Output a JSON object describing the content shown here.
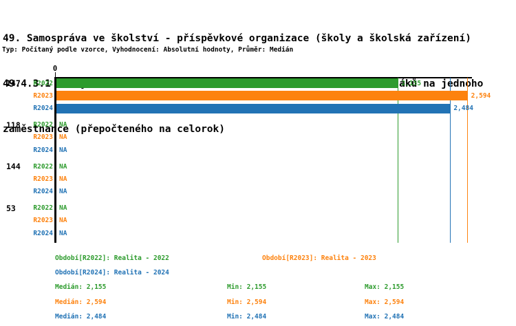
{
  "title": {
    "line1": "49. Samospráva ve školství - příspěvkové organizace (školy a školská zařízení)",
    "line2": "49.4.3.1 Školy zřízené dle § 16 odst. 9 školského zákona - Počet žáků na jednoho",
    "line3": "zaměstnance (přepočteného na celorok)",
    "subtitle": "Typ: Počítaný podle vzorce, Vyhodnocení: Absolutní hodnoty, Průměr: Medián"
  },
  "colors": {
    "series": {
      "R2022": "#2d9b2d",
      "R2023": "#fd820e",
      "R2024": "#2273b5"
    },
    "axis": "#000000",
    "text": "#000000"
  },
  "chart_data": {
    "type": "bar",
    "orientation": "horizontal",
    "x_tick_label": "0",
    "xlim": [
      0,
      2.62
    ],
    "decimal_separator": ",",
    "categories": [
      "147",
      "118",
      "144",
      "53"
    ],
    "series": [
      "R2022",
      "R2023",
      "R2024"
    ],
    "groups": [
      {
        "category": "147",
        "bars": [
          {
            "series": "R2022",
            "value": 2.155,
            "label": "2,155"
          },
          {
            "series": "R2023",
            "value": 2.594,
            "label": "2,594"
          },
          {
            "series": "R2024",
            "value": 2.484,
            "label": "2,484"
          }
        ]
      },
      {
        "category": "118",
        "bars": [
          {
            "series": "R2022",
            "value": null,
            "label": "NA"
          },
          {
            "series": "R2023",
            "value": null,
            "label": "NA"
          },
          {
            "series": "R2024",
            "value": null,
            "label": "NA"
          }
        ]
      },
      {
        "category": "144",
        "bars": [
          {
            "series": "R2022",
            "value": null,
            "label": "NA"
          },
          {
            "series": "R2023",
            "value": null,
            "label": "NA"
          },
          {
            "series": "R2024",
            "value": null,
            "label": "NA"
          }
        ]
      },
      {
        "category": "53",
        "bars": [
          {
            "series": "R2022",
            "value": null,
            "label": "NA"
          },
          {
            "series": "R2023",
            "value": null,
            "label": "NA"
          },
          {
            "series": "R2024",
            "value": null,
            "label": "NA"
          }
        ]
      }
    ],
    "reference_lines": [
      {
        "series": "R2022",
        "value": 2.155
      },
      {
        "series": "R2023",
        "value": 2.594
      },
      {
        "series": "R2024",
        "value": 2.484
      }
    ]
  },
  "legend": {
    "items": [
      {
        "series": "R2022",
        "label": "Období[R2022]: Realita - 2022"
      },
      {
        "series": "R2023",
        "label": "Období[R2023]: Realita - 2023"
      },
      {
        "series": "R2024",
        "label": "Období[R2024]: Realita - 2024"
      }
    ]
  },
  "stats": {
    "rows": [
      {
        "series": "R2022",
        "median": "Medián: 2,155",
        "min": "Min: 2,155",
        "max": "Max: 2,155"
      },
      {
        "series": "R2023",
        "median": "Medián: 2,594",
        "min": "Min: 2,594",
        "max": "Max: 2,594"
      },
      {
        "series": "R2024",
        "median": "Medián: 2,484",
        "min": "Min: 2,484",
        "max": "Max: 2,484"
      }
    ]
  }
}
